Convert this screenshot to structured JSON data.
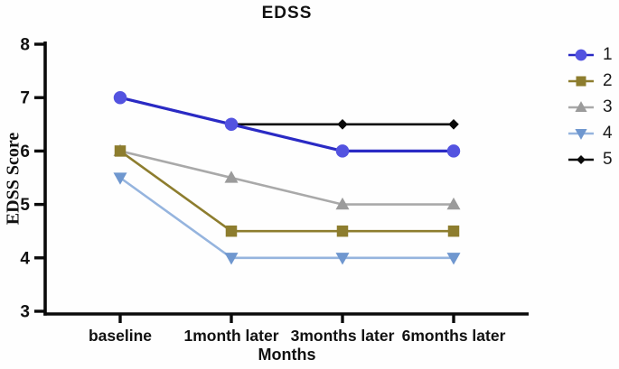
{
  "chart_data": {
    "type": "line",
    "title": "EDSS",
    "xlabel": "Months",
    "ylabel": "EDSS Score",
    "categories": [
      "baseline",
      "1month later",
      "3months later",
      "6months later"
    ],
    "ylim": [
      3,
      8
    ],
    "yticks": [
      3,
      4,
      5,
      6,
      7,
      8
    ],
    "grid": false,
    "legend_position": "right-outside",
    "axis_color": "#0a0a0a",
    "background_color": "#fefefe",
    "series": [
      {
        "name": "1",
        "marker": "circle",
        "line_color": "#2a2ac4",
        "marker_color": "#5353e0",
        "values": [
          7,
          6.5,
          6,
          6
        ]
      },
      {
        "name": "2",
        "marker": "square",
        "line_color": "#8d7d2e",
        "marker_color": "#8d7d2e",
        "values": [
          6,
          4.5,
          4.5,
          4.5
        ]
      },
      {
        "name": "3",
        "marker": "triangle-up",
        "line_color": "#a9a9a9",
        "marker_color": "#9b9b9b",
        "values": [
          6,
          5.5,
          5,
          5
        ]
      },
      {
        "name": "4",
        "marker": "triangle-down",
        "line_color": "#95b4de",
        "marker_color": "#6f97cf",
        "values": [
          5.5,
          4,
          4,
          4
        ]
      },
      {
        "name": "5",
        "marker": "diamond",
        "line_color": "#0a0a0a",
        "marker_color": "#0a0a0a",
        "values": [
          7,
          6.5,
          6.5,
          6.5
        ]
      }
    ]
  }
}
